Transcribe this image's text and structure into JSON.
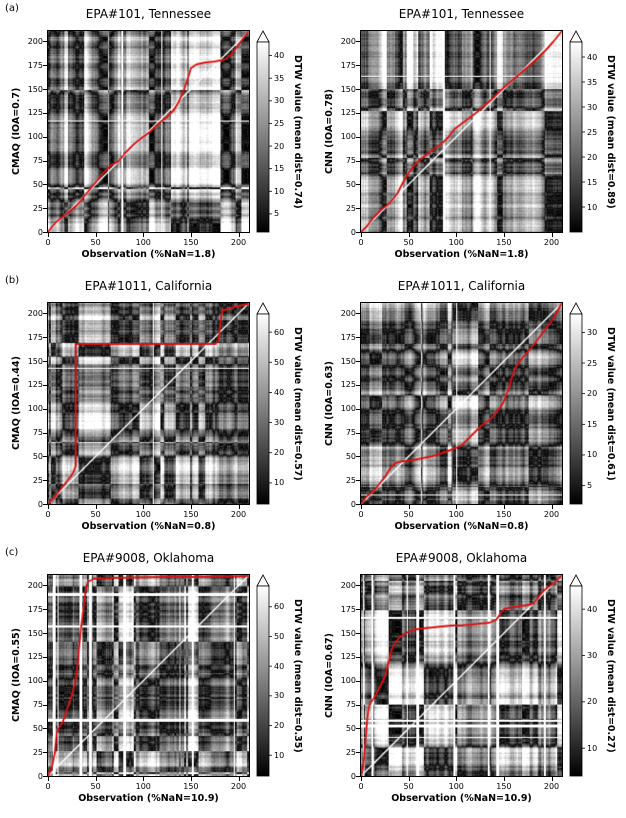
{
  "background": "#ffffff",
  "path_color": "#dd1111",
  "diagonal_color": "#ffffff",
  "chart_data": [
    {
      "type": "heatmap",
      "row_label": "(a)",
      "title": "EPA#101, Tennessee",
      "ylabel": "CMAQ (IOA=0.7)",
      "xlabel": "Observation (%NaN=1.8)",
      "nan_pct": 1.8,
      "axis_max": 211,
      "x_ticks": [
        0,
        50,
        100,
        150,
        200
      ],
      "y_ticks": [
        0,
        25,
        50,
        75,
        100,
        125,
        150,
        175,
        200
      ],
      "colorbar": {
        "label": "DTW value (mean dist=0.74)",
        "ticks": [
          5,
          10,
          15,
          20,
          25,
          30,
          35,
          40
        ],
        "vmin": 1,
        "vmax": 43,
        "extend": "max"
      },
      "warping_path": [
        [
          0,
          0
        ],
        [
          8,
          10
        ],
        [
          18,
          18
        ],
        [
          30,
          28
        ],
        [
          40,
          40
        ],
        [
          50,
          52
        ],
        [
          58,
          62
        ],
        [
          66,
          70
        ],
        [
          74,
          74
        ],
        [
          82,
          84
        ],
        [
          90,
          92
        ],
        [
          100,
          100
        ],
        [
          108,
          106
        ],
        [
          116,
          114
        ],
        [
          124,
          120
        ],
        [
          132,
          128
        ],
        [
          138,
          138
        ],
        [
          143,
          150
        ],
        [
          147,
          162
        ],
        [
          150,
          172
        ],
        [
          156,
          176
        ],
        [
          165,
          178
        ],
        [
          175,
          179
        ],
        [
          185,
          181
        ],
        [
          192,
          186
        ],
        [
          198,
          194
        ],
        [
          204,
          202
        ],
        [
          210,
          210
        ]
      ]
    },
    {
      "type": "heatmap",
      "row_label": "",
      "title": "EPA#101, Tennessee",
      "ylabel": "CNN (IOA=0.78)",
      "xlabel": "Observation (%NaN=1.8)",
      "nan_pct": 1.8,
      "axis_max": 211,
      "x_ticks": [
        0,
        50,
        100,
        150,
        200
      ],
      "y_ticks": [
        0,
        25,
        50,
        75,
        100,
        125,
        150,
        175,
        200
      ],
      "colorbar": {
        "label": "DTW value (mean dist=0.89)",
        "ticks": [
          10,
          15,
          20,
          25,
          30,
          35,
          40
        ],
        "vmin": 5,
        "vmax": 43,
        "extend": "max"
      },
      "warping_path": [
        [
          0,
          0
        ],
        [
          6,
          6
        ],
        [
          14,
          16
        ],
        [
          22,
          24
        ],
        [
          30,
          30
        ],
        [
          38,
          40
        ],
        [
          44,
          52
        ],
        [
          50,
          62
        ],
        [
          56,
          70
        ],
        [
          62,
          76
        ],
        [
          70,
          82
        ],
        [
          78,
          88
        ],
        [
          86,
          94
        ],
        [
          92,
          100
        ],
        [
          98,
          108
        ],
        [
          106,
          114
        ],
        [
          114,
          120
        ],
        [
          122,
          126
        ],
        [
          130,
          133
        ],
        [
          138,
          140
        ],
        [
          146,
          148
        ],
        [
          154,
          155
        ],
        [
          162,
          162
        ],
        [
          170,
          169
        ],
        [
          178,
          176
        ],
        [
          186,
          183
        ],
        [
          194,
          191
        ],
        [
          202,
          200
        ],
        [
          210,
          210
        ]
      ]
    },
    {
      "type": "heatmap",
      "row_label": "(b)",
      "title": "EPA#1011, California",
      "ylabel": "CMAQ (IOA=0.44)",
      "xlabel": "Observation (%NaN=0.8)",
      "nan_pct": 0.8,
      "axis_max": 211,
      "x_ticks": [
        0,
        50,
        100,
        150,
        200
      ],
      "y_ticks": [
        0,
        25,
        50,
        75,
        100,
        125,
        150,
        175,
        200
      ],
      "colorbar": {
        "label": "DTW value (mean dist=0.57)",
        "ticks": [
          10,
          20,
          30,
          40,
          50,
          60
        ],
        "vmin": 3,
        "vmax": 66,
        "extend": "max"
      },
      "warping_path": [
        [
          0,
          0
        ],
        [
          6,
          6
        ],
        [
          12,
          14
        ],
        [
          20,
          24
        ],
        [
          26,
          32
        ],
        [
          29,
          40
        ],
        [
          29,
          168
        ],
        [
          176,
          168
        ],
        [
          179,
          172
        ],
        [
          181,
          190
        ],
        [
          183,
          203
        ],
        [
          192,
          206
        ],
        [
          210,
          210
        ]
      ]
    },
    {
      "type": "heatmap",
      "row_label": "",
      "title": "EPA#1011, California",
      "ylabel": "CNN (IOA=0.63)",
      "xlabel": "Observation (%NaN=0.8)",
      "nan_pct": 0.8,
      "axis_max": 211,
      "x_ticks": [
        0,
        50,
        100,
        150,
        200
      ],
      "y_ticks": [
        0,
        25,
        50,
        75,
        100,
        125,
        150,
        175,
        200
      ],
      "colorbar": {
        "label": "DTW value (mean dist=0.61)",
        "ticks": [
          5,
          10,
          15,
          20,
          25,
          30
        ],
        "vmin": 2,
        "vmax": 33,
        "extend": "max"
      },
      "warping_path": [
        [
          0,
          0
        ],
        [
          6,
          8
        ],
        [
          14,
          14
        ],
        [
          20,
          22
        ],
        [
          26,
          30
        ],
        [
          31,
          38
        ],
        [
          36,
          43
        ],
        [
          44,
          45
        ],
        [
          54,
          46
        ],
        [
          64,
          48
        ],
        [
          74,
          50
        ],
        [
          84,
          53
        ],
        [
          92,
          56
        ],
        [
          100,
          59
        ],
        [
          106,
          62
        ],
        [
          112,
          68
        ],
        [
          118,
          74
        ],
        [
          124,
          80
        ],
        [
          130,
          85
        ],
        [
          136,
          89
        ],
        [
          141,
          95
        ],
        [
          146,
          101
        ],
        [
          150,
          108
        ],
        [
          153,
          116
        ],
        [
          156,
          124
        ],
        [
          158,
          132
        ],
        [
          161,
          140
        ],
        [
          165,
          148
        ],
        [
          170,
          154
        ],
        [
          176,
          161
        ],
        [
          182,
          168
        ],
        [
          188,
          176
        ],
        [
          194,
          184
        ],
        [
          200,
          192
        ],
        [
          205,
          200
        ],
        [
          210,
          210
        ]
      ]
    },
    {
      "type": "heatmap",
      "row_label": "(c)",
      "title": "EPA#9008, Oklahoma",
      "ylabel": "CMAQ (IOA=0.55)",
      "xlabel": "Observation (%NaN=10.9)",
      "nan_pct": 10.9,
      "axis_max": 211,
      "x_ticks": [
        0,
        50,
        100,
        150,
        200
      ],
      "y_ticks": [
        0,
        25,
        50,
        75,
        100,
        125,
        150,
        175,
        200
      ],
      "colorbar": {
        "label": "DTW value (mean dist=0.35)",
        "ticks": [
          10,
          20,
          30,
          40,
          50,
          60
        ],
        "vmin": 3,
        "vmax": 67,
        "extend": "max"
      },
      "warping_path": [
        [
          0,
          0
        ],
        [
          3,
          6
        ],
        [
          5,
          14
        ],
        [
          7,
          24
        ],
        [
          8,
          34
        ],
        [
          9,
          44
        ],
        [
          11,
          50
        ],
        [
          14,
          54
        ],
        [
          16,
          58
        ],
        [
          18,
          64
        ],
        [
          20,
          70
        ],
        [
          22,
          76
        ],
        [
          24,
          82
        ],
        [
          26,
          88
        ],
        [
          27,
          94
        ],
        [
          29,
          100
        ],
        [
          30,
          108
        ],
        [
          31,
          118
        ],
        [
          32,
          128
        ],
        [
          33,
          138
        ],
        [
          34,
          148
        ],
        [
          35,
          158
        ],
        [
          36,
          166
        ],
        [
          37,
          174
        ],
        [
          38,
          182
        ],
        [
          39,
          190
        ],
        [
          40,
          198
        ],
        [
          42,
          204
        ],
        [
          48,
          207
        ],
        [
          70,
          208
        ],
        [
          120,
          209
        ],
        [
          170,
          209
        ],
        [
          210,
          210
        ]
      ]
    },
    {
      "type": "heatmap",
      "row_label": "",
      "title": "EPA#9008, Oklahoma",
      "ylabel": "CNN (IOA=0.67)",
      "xlabel": "Observation (%NaN=10.9)",
      "nan_pct": 10.9,
      "axis_max": 211,
      "x_ticks": [
        0,
        50,
        100,
        150,
        200
      ],
      "y_ticks": [
        0,
        25,
        50,
        75,
        100,
        125,
        150,
        175,
        200
      ],
      "colorbar": {
        "label": "DTW value (mean dist=0.27)",
        "ticks": [
          10,
          20,
          30,
          40
        ],
        "vmin": 4,
        "vmax": 45,
        "extend": "max"
      },
      "warping_path": [
        [
          0,
          0
        ],
        [
          2,
          8
        ],
        [
          3,
          18
        ],
        [
          4,
          30
        ],
        [
          5,
          42
        ],
        [
          6,
          54
        ],
        [
          7,
          64
        ],
        [
          8,
          72
        ],
        [
          10,
          77
        ],
        [
          13,
          81
        ],
        [
          16,
          86
        ],
        [
          19,
          92
        ],
        [
          22,
          98
        ],
        [
          25,
          104
        ],
        [
          27,
          112
        ],
        [
          29,
          120
        ],
        [
          31,
          128
        ],
        [
          33,
          135
        ],
        [
          36,
          140
        ],
        [
          40,
          145
        ],
        [
          45,
          149
        ],
        [
          51,
          152
        ],
        [
          58,
          154
        ],
        [
          66,
          155
        ],
        [
          75,
          156
        ],
        [
          85,
          157
        ],
        [
          95,
          158
        ],
        [
          105,
          158
        ],
        [
          115,
          159
        ],
        [
          125,
          160
        ],
        [
          135,
          161
        ],
        [
          142,
          164
        ],
        [
          146,
          170
        ],
        [
          150,
          175
        ],
        [
          157,
          177
        ],
        [
          165,
          178
        ],
        [
          173,
          179
        ],
        [
          181,
          181
        ],
        [
          186,
          187
        ],
        [
          190,
          193
        ],
        [
          196,
          198
        ],
        [
          202,
          202
        ],
        [
          210,
          210
        ]
      ]
    }
  ]
}
